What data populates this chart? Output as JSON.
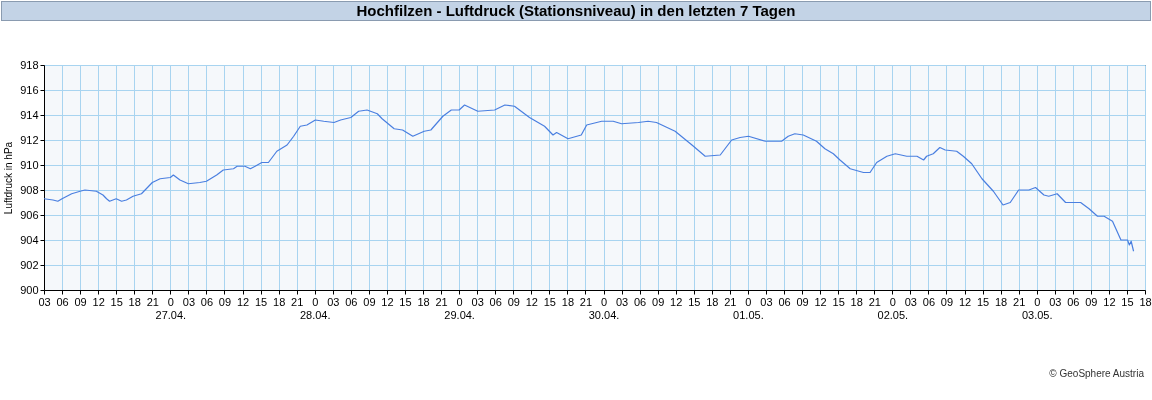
{
  "chart_data": {
    "type": "line",
    "title": "Hochfilzen - Luftdruck (Stationsniveau) in den letzten 7 Tagen",
    "ylabel": "Luftdruck in hPa",
    "x": [
      "--04-26T03:00",
      "--04-26T04:30",
      "--04-26T05:18",
      "--04-26T06:00",
      "--04-26T07:36",
      "--04-26T09:00",
      "--04-26T09:48",
      "--04-26T11:42",
      "--04-26T12:48",
      "--04-26T13:24",
      "--04-26T13:54",
      "--04-26T15:00",
      "--04-26T15:54",
      "--04-26T16:42",
      "--04-26T17:48",
      "--04-26T19:12",
      "--04-26T20:00",
      "--04-26T21:00",
      "--04-26T22:18",
      "--04-27T00:00",
      "--04-27T00:30",
      "--04-27T01:36",
      "--04-27T03:00",
      "--04-27T04:54",
      "--04-27T06:00",
      "--04-27T07:42",
      "--04-27T08:48",
      "--04-27T10:30",
      "--04-27T11:06",
      "--04-27T12:24",
      "--04-27T13:18",
      "--04-27T14:06",
      "--04-27T15:12",
      "--04-27T16:18",
      "--04-27T17:42",
      "--04-27T19:24",
      "--04-27T20:30",
      "--04-27T21:36",
      "--04-27T22:42",
      "--04-28T00:06",
      "--04-28T01:30",
      "--04-28T03:12",
      "--04-28T04:18",
      "--04-28T06:00",
      "--04-28T07:18",
      "--04-28T08:42",
      "--04-28T10:24",
      "--04-28T11:12",
      "--04-28T13:12",
      "--04-28T14:36",
      "--04-28T16:18",
      "--04-28T18:12",
      "--04-28T19:18",
      "--04-28T21:18",
      "--04-28T22:42",
      "--04-29T00:00",
      "--04-29T00:54",
      "--04-29T03:06",
      "--04-29T05:54",
      "--04-29T07:36",
      "--04-29T09:12",
      "--04-29T11:42",
      "--04-29T14:12",
      "--04-29T15:36",
      "--04-29T16:12",
      "--04-29T18:06",
      "--04-29T20:18",
      "--04-29T21:12",
      "--04-29T23:42",
      "--04-30T01:36",
      "--04-30T03:00",
      "--04-30T05:48",
      "--04-30T07:24",
      "--04-30T08:48",
      "--04-30T11:54",
      "--04-30T14:42",
      "--04-30T16:54",
      "--04-30T19:24",
      "--04-30T21:18",
      "--04-30T22:42",
      "--05-01T00:06",
      "--05-01T02:54",
      "--05-01T04:12",
      "--05-01T05:36",
      "--05-01T06:42",
      "--05-01T07:48",
      "--05-01T09:12",
      "--05-01T11:24",
      "--05-01T12:48",
      "--05-01T14:12",
      "--05-01T15:18",
      "--05-01T17:00",
      "--05-01T19:12",
      "--05-01T20:18",
      "--05-01T21:24",
      "--05-01T23:06",
      "--05-02T00:30",
      "--05-02T02:24",
      "--05-02T04:06",
      "--05-02T05:12",
      "--05-02T05:42",
      "--05-02T06:48",
      "--05-02T07:54",
      "--05-02T08:48",
      "--05-02T10:42",
      "--05-02T11:48",
      "--05-02T13:12",
      "--05-02T14:54",
      "--05-02T16:48",
      "--05-02T18:24",
      "--05-02T19:36",
      "--05-02T21:00",
      "--05-02T22:42",
      "--05-02T23:48",
      "--05-03T01:12",
      "--05-03T02:00",
      "--05-03T03:24",
      "--05-03T04:48",
      "--05-03T07:18",
      "--05-03T08:42",
      "--05-03T10:06",
      "--05-03T11:12",
      "--05-03T12:36",
      "--05-03T14:00",
      "--05-03T15:06",
      "--05-03T15:24",
      "--05-03T15:42",
      "--05-03T16:06"
    ],
    "series": [
      {
        "color": "#4a7fe0",
        "values": [
          907.3,
          907.2,
          907.1,
          907.3,
          907.7,
          907.9,
          908.0,
          907.9,
          907.6,
          907.3,
          907.1,
          907.3,
          907.1,
          907.2,
          907.5,
          907.7,
          908.1,
          908.6,
          908.9,
          909.0,
          909.2,
          908.8,
          908.5,
          908.6,
          908.7,
          909.2,
          909.6,
          909.7,
          909.9,
          909.9,
          909.7,
          909.9,
          910.2,
          910.2,
          911.1,
          911.6,
          912.3,
          913.1,
          913.2,
          913.6,
          913.5,
          913.4,
          913.6,
          913.8,
          914.3,
          914.4,
          914.1,
          913.7,
          912.9,
          912.8,
          912.3,
          912.7,
          912.8,
          913.9,
          914.4,
          914.4,
          914.8,
          914.3,
          914.4,
          914.8,
          914.7,
          913.8,
          913.1,
          912.4,
          912.6,
          912.1,
          912.4,
          913.2,
          913.5,
          913.5,
          913.3,
          913.4,
          913.5,
          913.4,
          912.7,
          911.6,
          910.7,
          910.8,
          912.0,
          912.2,
          912.3,
          911.9,
          911.9,
          911.9,
          912.3,
          912.5,
          912.4,
          911.9,
          911.3,
          910.9,
          910.4,
          909.7,
          909.4,
          909.4,
          910.2,
          910.7,
          910.9,
          910.7,
          910.7,
          910.4,
          910.7,
          910.9,
          911.4,
          911.2,
          911.1,
          910.7,
          910.1,
          908.9,
          907.9,
          906.8,
          907.0,
          908.0,
          908.0,
          908.2,
          907.6,
          907.5,
          907.7,
          907.0,
          907.0,
          906.5,
          905.9,
          905.9,
          905.5,
          904.0,
          904.0,
          903.6,
          903.9,
          903.1
        ]
      }
    ],
    "xlim": [
      "--04-26T03:00",
      "--05-03T18:00"
    ],
    "xticks": [
      {
        "value": "--04-26T03:00",
        "label": "03"
      },
      {
        "value": "--04-26T06:00",
        "label": "06"
      },
      {
        "value": "--04-26T09:00",
        "label": "09"
      },
      {
        "value": "--04-26T12:00",
        "label": "12"
      },
      {
        "value": "--04-26T15:00",
        "label": "15"
      },
      {
        "value": "--04-26T18:00",
        "label": "18"
      },
      {
        "value": "--04-26T21:00",
        "label": "21"
      },
      {
        "value": "--04-27T00:00",
        "label": "0\n27.04."
      },
      {
        "value": "--04-27T03:00",
        "label": "03"
      },
      {
        "value": "--04-27T06:00",
        "label": "06"
      },
      {
        "value": "--04-27T09:00",
        "label": "09"
      },
      {
        "value": "--04-27T12:00",
        "label": "12"
      },
      {
        "value": "--04-27T15:00",
        "label": "15"
      },
      {
        "value": "--04-27T18:00",
        "label": "18"
      },
      {
        "value": "--04-27T21:00",
        "label": "21"
      },
      {
        "value": "--04-28T00:00",
        "label": "0\n28.04."
      },
      {
        "value": "--04-28T03:00",
        "label": "03"
      },
      {
        "value": "--04-28T06:00",
        "label": "06"
      },
      {
        "value": "--04-28T09:00",
        "label": "09"
      },
      {
        "value": "--04-28T12:00",
        "label": "12"
      },
      {
        "value": "--04-28T15:00",
        "label": "15"
      },
      {
        "value": "--04-28T18:00",
        "label": "18"
      },
      {
        "value": "--04-28T21:00",
        "label": "21"
      },
      {
        "value": "--04-29T00:00",
        "label": "0\n29.04."
      },
      {
        "value": "--04-29T03:00",
        "label": "03"
      },
      {
        "value": "--04-29T06:00",
        "label": "06"
      },
      {
        "value": "--04-29T09:00",
        "label": "09"
      },
      {
        "value": "--04-29T12:00",
        "label": "12"
      },
      {
        "value": "--04-29T15:00",
        "label": "15"
      },
      {
        "value": "--04-29T18:00",
        "label": "18"
      },
      {
        "value": "--04-29T21:00",
        "label": "21"
      },
      {
        "value": "--04-30T00:00",
        "label": "0\n30.04."
      },
      {
        "value": "--04-30T03:00",
        "label": "03"
      },
      {
        "value": "--04-30T06:00",
        "label": "06"
      },
      {
        "value": "--04-30T09:00",
        "label": "09"
      },
      {
        "value": "--04-30T12:00",
        "label": "12"
      },
      {
        "value": "--04-30T15:00",
        "label": "15"
      },
      {
        "value": "--04-30T18:00",
        "label": "18"
      },
      {
        "value": "--04-30T21:00",
        "label": "21"
      },
      {
        "value": "--05-01T00:00",
        "label": "0\n01.05."
      },
      {
        "value": "--05-01T03:00",
        "label": "03"
      },
      {
        "value": "--05-01T06:00",
        "label": "06"
      },
      {
        "value": "--05-01T09:00",
        "label": "09"
      },
      {
        "value": "--05-01T12:00",
        "label": "12"
      },
      {
        "value": "--05-01T15:00",
        "label": "15"
      },
      {
        "value": "--05-01T18:00",
        "label": "18"
      },
      {
        "value": "--05-01T21:00",
        "label": "21"
      },
      {
        "value": "--05-02T00:00",
        "label": "0\n02.05."
      },
      {
        "value": "--05-02T03:00",
        "label": "03"
      },
      {
        "value": "--05-02T06:00",
        "label": "06"
      },
      {
        "value": "--05-02T09:00",
        "label": "09"
      },
      {
        "value": "--05-02T12:00",
        "label": "12"
      },
      {
        "value": "--05-02T15:00",
        "label": "15"
      },
      {
        "value": "--05-02T18:00",
        "label": "18"
      },
      {
        "value": "--05-02T21:00",
        "label": "21"
      },
      {
        "value": "--05-03T00:00",
        "label": "0\n03.05."
      },
      {
        "value": "--05-03T03:00",
        "label": "03"
      },
      {
        "value": "--05-03T06:00",
        "label": "06"
      },
      {
        "value": "--05-03T09:00",
        "label": "09"
      },
      {
        "value": "--05-03T12:00",
        "label": "12"
      },
      {
        "value": "--05-03T15:00",
        "label": "15"
      },
      {
        "value": "--05-03T18:00",
        "label": "18"
      }
    ],
    "ylim": [
      900,
      918
    ],
    "yticks": [
      900,
      902,
      904,
      906,
      908,
      910,
      912,
      914,
      916,
      918
    ],
    "grid": true,
    "legend": false,
    "marker": "none",
    "line_style": "solid",
    "annotations": [
      "© GeoSphere Austria"
    ]
  }
}
